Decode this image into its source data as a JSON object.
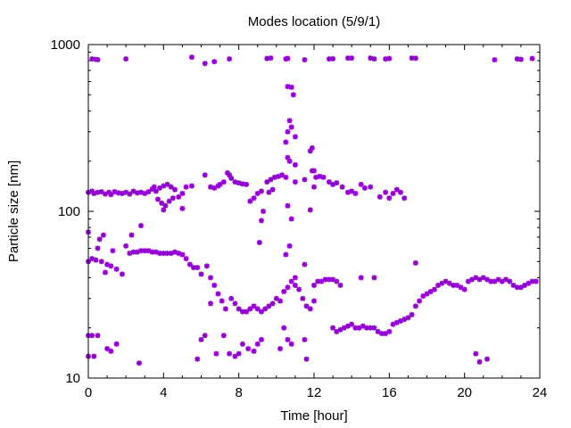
{
  "colors": {
    "marker": "#9400d3",
    "axis": "#000000",
    "background": "#ffffff"
  },
  "chart_data": {
    "type": "scatter",
    "title": "Modes location (5/9/1)",
    "xlabel": "Time [hour]",
    "ylabel": "Particle size [nm]",
    "xlim": [
      0,
      24
    ],
    "ylim": [
      10,
      1000
    ],
    "yscale": "log",
    "grid": false,
    "legend": "none",
    "marker": "asterisk",
    "x_ticks": [
      0,
      4,
      8,
      12,
      16,
      20,
      24
    ],
    "x_tick_labels": [
      "0",
      "4",
      "8",
      "12",
      "16",
      "20",
      "24"
    ],
    "y_ticks": [
      10,
      100,
      1000
    ],
    "y_tick_labels": [
      "10",
      "100",
      "1000"
    ],
    "series": [
      {
        "values": [
          [
            0.2,
            820
          ],
          [
            0.4,
            815
          ],
          [
            0.5,
            812
          ],
          [
            2.0,
            820
          ],
          [
            5.5,
            840
          ],
          [
            6.2,
            770
          ],
          [
            6.7,
            790
          ],
          [
            7.5,
            820
          ],
          [
            9.5,
            825
          ],
          [
            9.7,
            830
          ],
          [
            10.5,
            820
          ],
          [
            10.6,
            825
          ],
          [
            11.5,
            810
          ],
          [
            12.8,
            820
          ],
          [
            13.0,
            822
          ],
          [
            13.8,
            830
          ],
          [
            14.0,
            830
          ],
          [
            15.0,
            830
          ],
          [
            15.2,
            820
          ],
          [
            15.8,
            820
          ],
          [
            16.0,
            825
          ],
          [
            17.2,
            830
          ],
          [
            17.4,
            828
          ],
          [
            21.6,
            810
          ],
          [
            22.8,
            820
          ],
          [
            23.0,
            815
          ],
          [
            23.6,
            825
          ],
          [
            10.6,
            560
          ],
          [
            10.8,
            555
          ],
          [
            10.9,
            500
          ],
          [
            10.7,
            350
          ],
          [
            10.8,
            320
          ],
          [
            10.6,
            300
          ],
          [
            10.5,
            260
          ],
          [
            11.0,
            280
          ],
          [
            11.8,
            230
          ],
          [
            11.9,
            240
          ],
          [
            10.6,
            210
          ],
          [
            10.7,
            200
          ],
          [
            11.0,
            190
          ],
          [
            11.9,
            175
          ],
          [
            0.0,
            130
          ],
          [
            0.2,
            132
          ],
          [
            0.3,
            128
          ],
          [
            0.5,
            130
          ],
          [
            0.7,
            131
          ],
          [
            0.9,
            127
          ],
          [
            1.1,
            130
          ],
          [
            1.2,
            126
          ],
          [
            1.4,
            131
          ],
          [
            1.6,
            129
          ],
          [
            1.8,
            128
          ],
          [
            2.0,
            130
          ],
          [
            2.2,
            127
          ],
          [
            2.4,
            132
          ],
          [
            2.6,
            129
          ],
          [
            2.8,
            130
          ],
          [
            3.0,
            128
          ],
          [
            3.2,
            131
          ],
          [
            3.4,
            136
          ],
          [
            3.5,
            140
          ],
          [
            3.6,
            132
          ],
          [
            3.8,
            138
          ],
          [
            4.0,
            142
          ],
          [
            4.2,
            145
          ],
          [
            4.4,
            140
          ],
          [
            4.6,
            135
          ],
          [
            5.0,
            128
          ],
          [
            5.2,
            140
          ],
          [
            5.5,
            142
          ],
          [
            3.7,
            118
          ],
          [
            3.9,
            112
          ],
          [
            4.1,
            108
          ],
          [
            4.3,
            115
          ],
          [
            4.5,
            120
          ],
          [
            4.8,
            122
          ],
          [
            5.0,
            104
          ],
          [
            4.0,
            102
          ],
          [
            6.5,
            140
          ],
          [
            6.7,
            138
          ],
          [
            6.9,
            142
          ],
          [
            7.0,
            145
          ],
          [
            7.2,
            150
          ],
          [
            7.4,
            170
          ],
          [
            7.5,
            165
          ],
          [
            7.6,
            158
          ],
          [
            7.8,
            150
          ],
          [
            8.0,
            148
          ],
          [
            8.2,
            146
          ],
          [
            8.4,
            145
          ],
          [
            6.2,
            165
          ],
          [
            8.6,
            115
          ],
          [
            8.8,
            120
          ],
          [
            9.0,
            128
          ],
          [
            9.2,
            132
          ],
          [
            9.5,
            150
          ],
          [
            9.7,
            155
          ],
          [
            9.9,
            160
          ],
          [
            10.1,
            162
          ],
          [
            10.3,
            165
          ],
          [
            10.5,
            160
          ],
          [
            9.6,
            130
          ],
          [
            9.8,
            135
          ],
          [
            11.0,
            150
          ],
          [
            11.5,
            155
          ],
          [
            12.0,
            175
          ],
          [
            12.1,
            160
          ],
          [
            12.3,
            162
          ],
          [
            12.5,
            160
          ],
          [
            12.8,
            150
          ],
          [
            13.0,
            145
          ],
          [
            13.2,
            148
          ],
          [
            13.5,
            140
          ],
          [
            13.8,
            130
          ],
          [
            14.0,
            132
          ],
          [
            14.2,
            128
          ],
          [
            14.5,
            145
          ],
          [
            14.7,
            138
          ],
          [
            15.0,
            140
          ],
          [
            15.5,
            122
          ],
          [
            16.0,
            120
          ],
          [
            16.2,
            128
          ],
          [
            16.4,
            135
          ],
          [
            16.6,
            130
          ],
          [
            16.8,
            120
          ],
          [
            15.8,
            130
          ],
          [
            9.2,
            88
          ],
          [
            9.3,
            100
          ],
          [
            10.8,
            90
          ],
          [
            10.6,
            108
          ],
          [
            11.8,
            102
          ],
          [
            12.0,
            140
          ],
          [
            0.0,
            75
          ],
          [
            0.5,
            60
          ],
          [
            0.6,
            68
          ],
          [
            0.8,
            72
          ],
          [
            1.3,
            58
          ],
          [
            2.0,
            62
          ],
          [
            2.3,
            72
          ],
          [
            2.8,
            82
          ],
          [
            0.0,
            50
          ],
          [
            0.2,
            52
          ],
          [
            0.4,
            51
          ],
          [
            0.7,
            50
          ],
          [
            1.0,
            48
          ],
          [
            1.2,
            47
          ],
          [
            1.5,
            45
          ],
          [
            0.9,
            43
          ],
          [
            1.8,
            42
          ],
          [
            2.2,
            56
          ],
          [
            2.4,
            57
          ],
          [
            2.6,
            57
          ],
          [
            2.8,
            58
          ],
          [
            3.0,
            58
          ],
          [
            3.2,
            58
          ],
          [
            3.4,
            57
          ],
          [
            3.6,
            57
          ],
          [
            3.8,
            56
          ],
          [
            4.0,
            56
          ],
          [
            4.2,
            56
          ],
          [
            4.4,
            56
          ],
          [
            4.6,
            57
          ],
          [
            4.8,
            56
          ],
          [
            5.0,
            55
          ],
          [
            5.2,
            52
          ],
          [
            5.4,
            48
          ],
          [
            5.6,
            46
          ],
          [
            5.8,
            46
          ],
          [
            6.0,
            42
          ],
          [
            6.3,
            47
          ],
          [
            6.5,
            40
          ],
          [
            6.7,
            36
          ],
          [
            6.9,
            32
          ],
          [
            7.1,
            29
          ],
          [
            7.3,
            26
          ],
          [
            6.5,
            28
          ],
          [
            7.6,
            30
          ],
          [
            7.8,
            28
          ],
          [
            8.0,
            26
          ],
          [
            8.2,
            25
          ],
          [
            8.4,
            25
          ],
          [
            8.6,
            26
          ],
          [
            8.8,
            27
          ],
          [
            9.0,
            26
          ],
          [
            9.2,
            25
          ],
          [
            9.4,
            26
          ],
          [
            9.6,
            27
          ],
          [
            9.8,
            28
          ],
          [
            10.0,
            30
          ],
          [
            10.2,
            29
          ],
          [
            10.4,
            33
          ],
          [
            10.6,
            35
          ],
          [
            10.8,
            38
          ],
          [
            11.0,
            36
          ],
          [
            11.2,
            34
          ],
          [
            11.4,
            30
          ],
          [
            11.6,
            27
          ],
          [
            11.8,
            26
          ],
          [
            12.0,
            36
          ],
          [
            12.2,
            38
          ],
          [
            12.4,
            38
          ],
          [
            12.6,
            39
          ],
          [
            12.8,
            39
          ],
          [
            13.0,
            39
          ],
          [
            13.2,
            38
          ],
          [
            13.4,
            36
          ],
          [
            14.5,
            40
          ],
          [
            15.2,
            40
          ],
          [
            13.0,
            20
          ],
          [
            13.2,
            19
          ],
          [
            13.4,
            19.5
          ],
          [
            13.6,
            20
          ],
          [
            13.8,
            20.5
          ],
          [
            14.0,
            21
          ],
          [
            14.2,
            20
          ],
          [
            14.4,
            20
          ],
          [
            14.6,
            20.5
          ],
          [
            14.8,
            20
          ],
          [
            15.0,
            20
          ],
          [
            15.2,
            20
          ],
          [
            15.4,
            19
          ],
          [
            15.6,
            18.5
          ],
          [
            15.8,
            18.5
          ],
          [
            16.0,
            19
          ],
          [
            16.2,
            21
          ],
          [
            16.4,
            21.5
          ],
          [
            16.6,
            22
          ],
          [
            16.8,
            22.5
          ],
          [
            17.0,
            23
          ],
          [
            17.2,
            24
          ],
          [
            17.4,
            27
          ],
          [
            17.6,
            29
          ],
          [
            17.8,
            31
          ],
          [
            18.0,
            32
          ],
          [
            18.2,
            33
          ],
          [
            18.4,
            34
          ],
          [
            18.6,
            36
          ],
          [
            18.8,
            37
          ],
          [
            19.0,
            38
          ],
          [
            19.2,
            37
          ],
          [
            19.4,
            36
          ],
          [
            19.6,
            36
          ],
          [
            19.8,
            35
          ],
          [
            20.0,
            34
          ],
          [
            20.2,
            38
          ],
          [
            20.4,
            39
          ],
          [
            20.6,
            40
          ],
          [
            20.8,
            39
          ],
          [
            21.0,
            40
          ],
          [
            21.2,
            39
          ],
          [
            21.4,
            38
          ],
          [
            21.6,
            38
          ],
          [
            21.8,
            39
          ],
          [
            22.0,
            38
          ],
          [
            22.2,
            39
          ],
          [
            22.4,
            38
          ],
          [
            22.6,
            36
          ],
          [
            22.8,
            35
          ],
          [
            23.0,
            35
          ],
          [
            23.2,
            36
          ],
          [
            23.4,
            37
          ],
          [
            23.6,
            38
          ],
          [
            23.8,
            38
          ],
          [
            17.4,
            49
          ],
          [
            0.0,
            18
          ],
          [
            0.2,
            18
          ],
          [
            0.5,
            18
          ],
          [
            0.0,
            13.5
          ],
          [
            0.3,
            13.5
          ],
          [
            1.2,
            14.5
          ],
          [
            1.5,
            16
          ],
          [
            1.0,
            15
          ],
          [
            2.7,
            12.3
          ],
          [
            5.8,
            13
          ],
          [
            6.0,
            17
          ],
          [
            6.2,
            18
          ],
          [
            6.8,
            14
          ],
          [
            7.2,
            18
          ],
          [
            7.5,
            14
          ],
          [
            7.8,
            13.5
          ],
          [
            8.0,
            14
          ],
          [
            8.2,
            16
          ],
          [
            8.5,
            15
          ],
          [
            8.8,
            14.5
          ],
          [
            9.0,
            16
          ],
          [
            9.2,
            17
          ],
          [
            10.2,
            15
          ],
          [
            10.4,
            20
          ],
          [
            10.6,
            17
          ],
          [
            10.8,
            16
          ],
          [
            11.5,
            17
          ],
          [
            11.6,
            13
          ],
          [
            20.6,
            14
          ],
          [
            20.8,
            12.5
          ],
          [
            21.2,
            13
          ],
          [
            9.1,
            65
          ],
          [
            10.5,
            55
          ],
          [
            11.5,
            48
          ],
          [
            10.7,
            62
          ],
          [
            11.0,
            40
          ],
          [
            12.0,
            29
          ]
        ]
      }
    ]
  }
}
